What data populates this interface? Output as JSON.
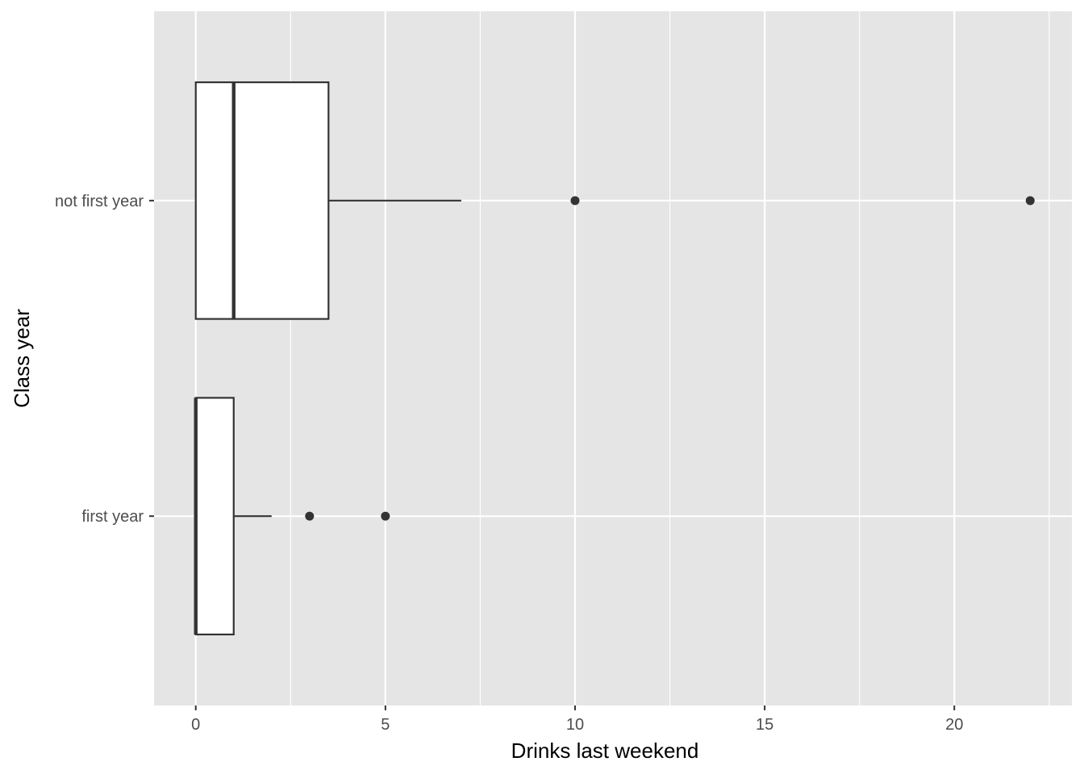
{
  "chart_data": {
    "type": "boxplot",
    "orientation": "horizontal",
    "xlabel": "Drinks last weekend",
    "ylabel": "Class year",
    "xlim": [
      -1.1,
      23.1
    ],
    "x_ticks": [
      0,
      5,
      10,
      15,
      20
    ],
    "x_tick_labels": [
      "0",
      "5",
      "10",
      "15",
      "20"
    ],
    "x_minor_ticks": [
      2.5,
      7.5,
      12.5,
      17.5,
      22.5
    ],
    "categories": [
      "first year",
      "not first year"
    ],
    "grid": true,
    "legend": "none",
    "colors": {
      "panel_background": "#e5e5e5",
      "grid": "#ffffff",
      "box_fill": "#ffffff",
      "box_stroke": "#333333",
      "outlier": "#333333"
    },
    "boxes": [
      {
        "category": "first year",
        "whisker_low": 0,
        "q1": 0,
        "median": 0,
        "q3": 1,
        "whisker_high": 2,
        "outliers": [
          3,
          5
        ]
      },
      {
        "category": "not first year",
        "whisker_low": 0,
        "q1": 0,
        "median": 1,
        "q3": 3.5,
        "whisker_high": 7,
        "outliers": [
          10,
          22
        ]
      }
    ]
  }
}
